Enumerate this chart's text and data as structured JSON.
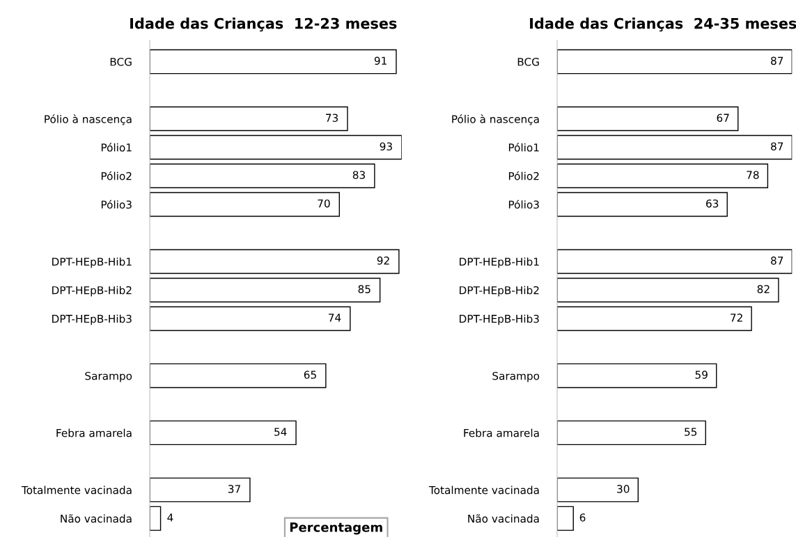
{
  "chart_data": [
    {
      "type": "bar",
      "orientation": "horizontal",
      "title": "Idade das Crianças  12-23 meses",
      "categories": [
        "BCG",
        null,
        "Pólio à nascença",
        "Pólio1",
        "Pólio2",
        "Pólio3",
        null,
        "DPT-HEpB-Hib1",
        "DPT-HEpB-Hib2",
        "DPT-HEpB-Hib3",
        null,
        "Sarampo",
        null,
        "Febra amarela",
        null,
        "Totalmente vacinada",
        "Não vacinada"
      ],
      "values": [
        91,
        null,
        73,
        93,
        83,
        70,
        null,
        92,
        85,
        74,
        null,
        65,
        null,
        54,
        null,
        37,
        4
      ],
      "color": "#ffffff",
      "data_labels": true,
      "grid": false,
      "legend": false,
      "tick_labels": "y",
      "annotations": [
        "Percentagem"
      ]
    },
    {
      "type": "bar",
      "orientation": "horizontal",
      "title": "Idade das Crianças  24-35 meses",
      "categories": [
        "BCG",
        null,
        "Pólio à nascença",
        "Pólio1",
        "Pólio2",
        "Pólio3",
        null,
        "DPT-HEpB-Hib1",
        "DPT-HEpB-Hib2",
        "DPT-HEpB-Hib3",
        null,
        "Sarampo",
        null,
        "Febra amarela",
        null,
        "Totalmente vacinada",
        "Não vacinada"
      ],
      "values": [
        87,
        null,
        67,
        87,
        78,
        63,
        null,
        87,
        82,
        72,
        null,
        59,
        null,
        55,
        null,
        30,
        6
      ],
      "color": "#ffffff",
      "data_labels": true,
      "grid": false,
      "legend": false,
      "tick_labels": "y"
    }
  ]
}
